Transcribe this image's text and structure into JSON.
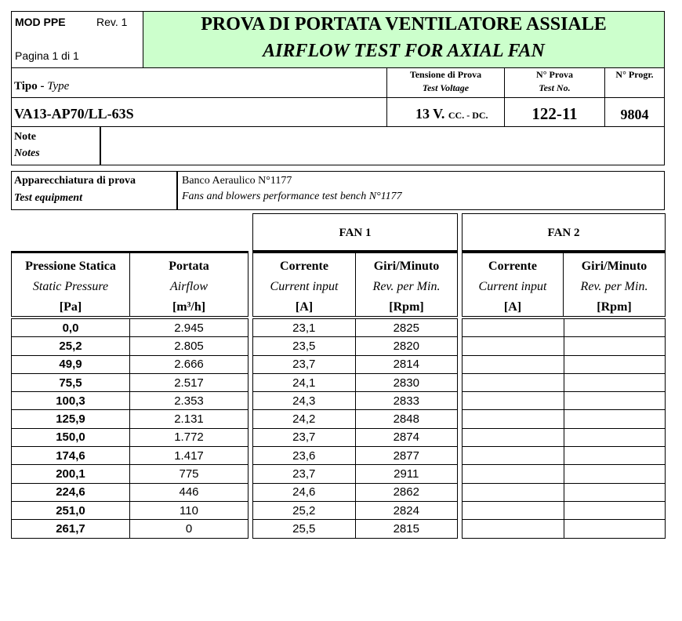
{
  "header": {
    "mod": "MOD PPE",
    "rev": "Rev. 1",
    "page": "Pagina 1 di 1",
    "title_it": "PROVA DI PORTATA VENTILATORE ASSIALE",
    "title_en": "AIRFLOW TEST FOR AXIAL FAN",
    "title_bg": "#ccffcc"
  },
  "info": {
    "type_label_it": "Tipo",
    "type_sep": "-",
    "type_label_en": "Type",
    "voltage_label_it": "Tensione di Prova",
    "voltage_label_en": "Test Voltage",
    "testno_label_it": "N° Prova",
    "testno_label_en": "Test No.",
    "progr_label": "N° Progr.",
    "type_value": "VA13-AP70/LL-63S",
    "voltage_value": "13  V.",
    "voltage_unit": "CC. - DC.",
    "testno_value": "122-11",
    "progr_value": "9804",
    "notes_it": "Note",
    "notes_en": "Notes",
    "notes_value": ""
  },
  "equipment": {
    "label_it": "Apparecchiatura di prova",
    "label_en": "Test equipment",
    "value_it": "Banco Aeraulico N°1177",
    "value_en": "Fans and blowers performance test bench N°1177"
  },
  "table": {
    "fan1": "FAN 1",
    "fan2": "FAN 2",
    "columns": [
      {
        "it": "Pressione Statica",
        "en": "Static Pressure",
        "unit": "[Pa]"
      },
      {
        "it": "Portata",
        "en": "Airflow",
        "unit": "[m³/h]"
      },
      {
        "it": "Corrente",
        "en": "Current input",
        "unit": "[A]"
      },
      {
        "it": "Giri/Minuto",
        "en": "Rev. per Min.",
        "unit": "[Rpm]"
      },
      {
        "it": "Corrente",
        "en": "Current input",
        "unit": "[A]"
      },
      {
        "it": "Giri/Minuto",
        "en": "Rev. per Min.",
        "unit": "[Rpm]"
      }
    ],
    "rows": [
      [
        "0,0",
        "2.945",
        "23,1",
        "2825",
        "",
        ""
      ],
      [
        "25,2",
        "2.805",
        "23,5",
        "2820",
        "",
        ""
      ],
      [
        "49,9",
        "2.666",
        "23,7",
        "2814",
        "",
        ""
      ],
      [
        "75,5",
        "2.517",
        "24,1",
        "2830",
        "",
        ""
      ],
      [
        "100,3",
        "2.353",
        "24,3",
        "2833",
        "",
        ""
      ],
      [
        "125,9",
        "2.131",
        "24,2",
        "2848",
        "",
        ""
      ],
      [
        "150,0",
        "1.772",
        "23,7",
        "2874",
        "",
        ""
      ],
      [
        "174,6",
        "1.417",
        "23,6",
        "2877",
        "",
        ""
      ],
      [
        "200,1",
        "775",
        "23,7",
        "2911",
        "",
        ""
      ],
      [
        "224,6",
        "446",
        "24,6",
        "2862",
        "",
        ""
      ],
      [
        "251,0",
        "110",
        "25,2",
        "2824",
        "",
        ""
      ],
      [
        "261,7",
        "0",
        "25,5",
        "2815",
        "",
        ""
      ]
    ]
  }
}
